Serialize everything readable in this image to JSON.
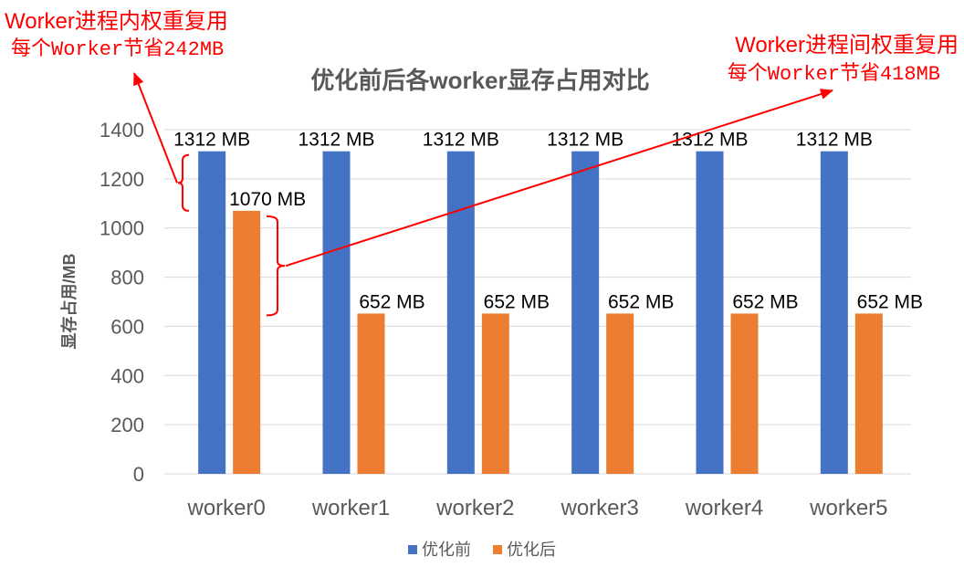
{
  "chart_data": {
    "type": "bar",
    "title": "优化前后各worker显存占用对比",
    "xlabel": "",
    "ylabel": "显存占用/MB",
    "ylim": [
      0,
      1400
    ],
    "yticks": [
      0,
      200,
      400,
      600,
      800,
      1000,
      1200,
      1400
    ],
    "grid": true,
    "legend_position": "bottom",
    "categories": [
      "worker0",
      "worker1",
      "worker2",
      "worker3",
      "worker4",
      "worker5"
    ],
    "series": [
      {
        "name": "优化前",
        "color": "#4472C4",
        "values": [
          1312,
          1312,
          1312,
          1312,
          1312,
          1312
        ],
        "data_labels": [
          "1312 MB",
          "1312 MB",
          "1312 MB",
          "1312 MB",
          "1312 MB",
          "1312 MB"
        ]
      },
      {
        "name": "优化后",
        "color": "#ED7D31",
        "values": [
          1070,
          652,
          652,
          652,
          652,
          652
        ],
        "data_labels": [
          "1070 MB",
          "652 MB",
          "652 MB",
          "652 MB",
          "652 MB",
          "652 MB"
        ]
      }
    ],
    "annotations": [
      {
        "lines": [
          "Worker进程内权重复用",
          "每个Worker节省242MB"
        ],
        "color": "#FF0000",
        "bracket_range": [
          1070,
          1312
        ]
      },
      {
        "lines": [
          "Worker进程间权重复用",
          "每个Worker节省418MB"
        ],
        "color": "#FF0000",
        "bracket_range": [
          652,
          1070
        ]
      }
    ]
  }
}
